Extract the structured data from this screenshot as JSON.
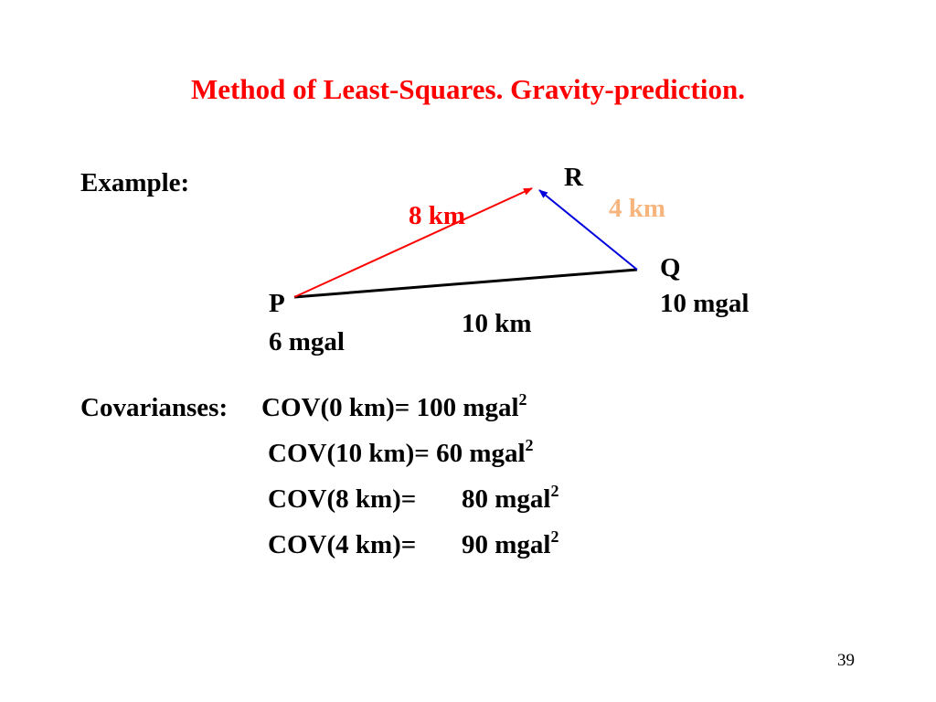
{
  "slide": {
    "title": "Method of Least-Squares.  Gravity-prediction.",
    "example_label": "Example:",
    "page_number": "39"
  },
  "diagram": {
    "points": {
      "P": {
        "name": "P",
        "value": "6 mgal"
      },
      "Q": {
        "name": "Q",
        "value": "10 mgal"
      },
      "R": {
        "name": "R"
      }
    },
    "distances": {
      "PR": {
        "label": "8 km",
        "color": "#ff0000"
      },
      "QR": {
        "label": "4 km",
        "color": "#f7b57e"
      },
      "PQ": {
        "label": "10 km",
        "color": "#000000"
      }
    },
    "edge_colors": {
      "PR": "#ff0000",
      "QR": "#0000dd",
      "PQ": "#000000"
    }
  },
  "covariances": {
    "heading": "Covarianses:",
    "unit_base": "mgal",
    "unit_exp": "2",
    "rows": [
      {
        "expr": "COV(0 km)=",
        "value": "100"
      },
      {
        "expr": "COV(10 km)=",
        "value": "60"
      },
      {
        "expr": "COV(8 km)=",
        "value": "80"
      },
      {
        "expr": "COV(4 km)=",
        "value": "90"
      }
    ]
  }
}
